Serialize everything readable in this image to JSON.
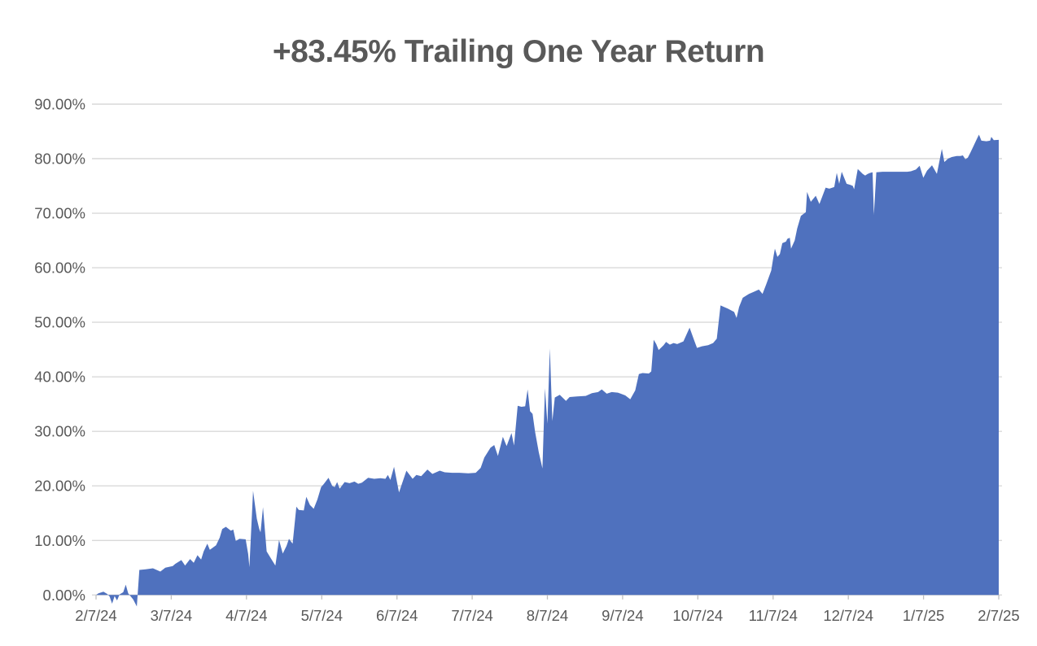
{
  "title": "+83.45% Trailing One Year Return",
  "colors": {
    "area_fill": "#4F71BE",
    "gridline": "#D9D9D9",
    "axis_line": "#D9D9D9",
    "tick_mark": "#BFBFBF",
    "axis_text": "#595959",
    "title_text": "#595959",
    "background": "#FFFFFF"
  },
  "chart_data": {
    "type": "area",
    "title": "+83.45% Trailing One Year Return",
    "xlabel": "",
    "ylabel": "",
    "grid": "horizontal",
    "legend": "none",
    "ylim": [
      0,
      90
    ],
    "y_step": 10,
    "x_domain": [
      0,
      365
    ],
    "final_value_pct": 83.45,
    "y_tick_labels": [
      "0.00%",
      "10.00%",
      "20.00%",
      "30.00%",
      "40.00%",
      "50.00%",
      "60.00%",
      "70.00%",
      "80.00%",
      "90.00%"
    ],
    "x_tick_labels": [
      "2/7/24",
      "3/7/24",
      "4/7/24",
      "5/7/24",
      "6/7/24",
      "7/7/24",
      "8/7/24",
      "9/7/24",
      "10/7/24",
      "11/7/24",
      "12/7/24",
      "1/7/25",
      "2/7/25"
    ],
    "series": [
      {
        "name": "Trailing One Year Return (%)",
        "points": [
          [
            0,
            0
          ],
          [
            1,
            0.3
          ],
          [
            3,
            0.6
          ],
          [
            4.5,
            0.2
          ],
          [
            5.5,
            -0.3
          ],
          [
            6.5,
            -1.6
          ],
          [
            7.5,
            -0.2
          ],
          [
            8.5,
            -1.0
          ],
          [
            9.5,
            0.1
          ],
          [
            11,
            0.5
          ],
          [
            12,
            1.9
          ],
          [
            13,
            0.3
          ],
          [
            15,
            -0.8
          ],
          [
            16.5,
            -2.1
          ],
          [
            17.5,
            4.6
          ],
          [
            20,
            4.7
          ],
          [
            23,
            4.9
          ],
          [
            26,
            4.3
          ],
          [
            28,
            5.0
          ],
          [
            31,
            5.3
          ],
          [
            32,
            5.7
          ],
          [
            34.5,
            6.4
          ],
          [
            36,
            5.4
          ],
          [
            38,
            6.6
          ],
          [
            39.5,
            5.9
          ],
          [
            41,
            7.3
          ],
          [
            42.5,
            6.5
          ],
          [
            43.5,
            8.0
          ],
          [
            45,
            9.4
          ],
          [
            46,
            8.3
          ],
          [
            48.5,
            9.1
          ],
          [
            50,
            10.5
          ],
          [
            51,
            12.1
          ],
          [
            52.5,
            12.5
          ],
          [
            54.5,
            11.8
          ],
          [
            55.5,
            12.0
          ],
          [
            56.5,
            9.9
          ],
          [
            58,
            10.3
          ],
          [
            60.5,
            10.2
          ],
          [
            61.5,
            7.5
          ],
          [
            62,
            5.1
          ],
          [
            63.5,
            19.1
          ],
          [
            65,
            14.0
          ],
          [
            66,
            12.1
          ],
          [
            66.5,
            11.5
          ],
          [
            67.5,
            16.1
          ],
          [
            69,
            8.0
          ],
          [
            71,
            6.5
          ],
          [
            72.5,
            5.4
          ],
          [
            74,
            10.1
          ],
          [
            75.5,
            7.6
          ],
          [
            77,
            9.0
          ],
          [
            78,
            10.3
          ],
          [
            79.5,
            9.4
          ],
          [
            81,
            16.2
          ],
          [
            82,
            15.6
          ],
          [
            84,
            15.5
          ],
          [
            85,
            18.0
          ],
          [
            86.5,
            16.5
          ],
          [
            88,
            15.8
          ],
          [
            89.5,
            17.5
          ],
          [
            91,
            19.8
          ],
          [
            92,
            20.3
          ],
          [
            94,
            21.5
          ],
          [
            95.5,
            20.0
          ],
          [
            96.5,
            19.8
          ],
          [
            97.5,
            20.7
          ],
          [
            98.5,
            19.5
          ],
          [
            100.5,
            20.7
          ],
          [
            102.5,
            20.5
          ],
          [
            104.5,
            20.8
          ],
          [
            106,
            20.4
          ],
          [
            107.5,
            20.6
          ],
          [
            110,
            21.5
          ],
          [
            112.5,
            21.3
          ],
          [
            115,
            21.4
          ],
          [
            117,
            21.3
          ],
          [
            118,
            22.0
          ],
          [
            119,
            21.1
          ],
          [
            120.5,
            23.5
          ],
          [
            122.5,
            18.8
          ],
          [
            125.5,
            22.8
          ],
          [
            128,
            21.3
          ],
          [
            129.5,
            22.0
          ],
          [
            131.5,
            21.8
          ],
          [
            134,
            23.0
          ],
          [
            136,
            22.2
          ],
          [
            139,
            22.8
          ],
          [
            141,
            22.5
          ],
          [
            144,
            22.4
          ],
          [
            147,
            22.4
          ],
          [
            150.5,
            22.3
          ],
          [
            153.5,
            22.4
          ],
          [
            155.5,
            23.3
          ],
          [
            157,
            25.2
          ],
          [
            159.5,
            27.0
          ],
          [
            161,
            27.5
          ],
          [
            162.5,
            25.5
          ],
          [
            164.5,
            29.0
          ],
          [
            166,
            27.3
          ],
          [
            168,
            29.7
          ],
          [
            169,
            27.4
          ],
          [
            170.5,
            34.7
          ],
          [
            172,
            34.5
          ],
          [
            173.5,
            34.6
          ],
          [
            174.5,
            37.7
          ],
          [
            175.5,
            33.7
          ],
          [
            176.5,
            33.2
          ],
          [
            177.5,
            30.0
          ],
          [
            179,
            26.2
          ],
          [
            180.5,
            23.2
          ],
          [
            181.5,
            37.9
          ],
          [
            182.5,
            31.4
          ],
          [
            183.5,
            45.2
          ],
          [
            184.5,
            31.9
          ],
          [
            185.5,
            36.2
          ],
          [
            187.5,
            36.7
          ],
          [
            190,
            35.6
          ],
          [
            191.5,
            36.3
          ],
          [
            194.5,
            36.4
          ],
          [
            198,
            36.5
          ],
          [
            200.5,
            37.0
          ],
          [
            203,
            37.2
          ],
          [
            204.5,
            37.7
          ],
          [
            206.5,
            36.9
          ],
          [
            208.5,
            37.2
          ],
          [
            211,
            37.1
          ],
          [
            214,
            36.6
          ],
          [
            216,
            35.9
          ],
          [
            218,
            37.5
          ],
          [
            219.5,
            40.5
          ],
          [
            221,
            40.7
          ],
          [
            223.5,
            40.6
          ],
          [
            224.5,
            41.0
          ],
          [
            225.5,
            46.8
          ],
          [
            226.5,
            46.0
          ],
          [
            227.5,
            44.9
          ],
          [
            229.5,
            45.8
          ],
          [
            230.5,
            46.4
          ],
          [
            232,
            45.9
          ],
          [
            233.5,
            46.2
          ],
          [
            235,
            46.0
          ],
          [
            237.5,
            46.5
          ],
          [
            240,
            49.0
          ],
          [
            242,
            46.5
          ],
          [
            243,
            45.3
          ],
          [
            245,
            45.6
          ],
          [
            247.5,
            45.8
          ],
          [
            249.5,
            46.2
          ],
          [
            251,
            47.0
          ],
          [
            252.5,
            53.1
          ],
          [
            254,
            52.8
          ],
          [
            255.5,
            52.5
          ],
          [
            258,
            51.9
          ],
          [
            259,
            50.8
          ],
          [
            260,
            52.8
          ],
          [
            261.5,
            54.5
          ],
          [
            264,
            55.2
          ],
          [
            266,
            55.6
          ],
          [
            268,
            56.0
          ],
          [
            269.5,
            55.2
          ],
          [
            271,
            57.0
          ],
          [
            273,
            59.5
          ],
          [
            274,
            62.3
          ],
          [
            274.5,
            63.5
          ],
          [
            275.5,
            62.0
          ],
          [
            276.5,
            62.5
          ],
          [
            277.5,
            64.5
          ],
          [
            279,
            64.8
          ],
          [
            279.5,
            65.3
          ],
          [
            280.5,
            65.5
          ],
          [
            281,
            63.5
          ],
          [
            282.5,
            65.0
          ],
          [
            283.5,
            67.2
          ],
          [
            285,
            69.5
          ],
          [
            287,
            70.2
          ],
          [
            287.5,
            73.9
          ],
          [
            289,
            72.1
          ],
          [
            291,
            73.2
          ],
          [
            292.5,
            71.7
          ],
          [
            294,
            73.5
          ],
          [
            295,
            74.7
          ],
          [
            296.5,
            74.5
          ],
          [
            298.5,
            74.8
          ],
          [
            299.5,
            77.4
          ],
          [
            300.5,
            75.4
          ],
          [
            301.5,
            77.6
          ],
          [
            303.5,
            75.4
          ],
          [
            305,
            75.2
          ],
          [
            306,
            75.0
          ],
          [
            306.5,
            74.4
          ],
          [
            308,
            78.1
          ],
          [
            310,
            77.2
          ],
          [
            311,
            76.9
          ],
          [
            312,
            77.2
          ],
          [
            313,
            77.4
          ],
          [
            314,
            77.5
          ],
          [
            314.5,
            69.7
          ],
          [
            315.5,
            77.5
          ],
          [
            318,
            77.6
          ],
          [
            321.5,
            77.6
          ],
          [
            325,
            77.6
          ],
          [
            328,
            77.6
          ],
          [
            329.5,
            77.7
          ],
          [
            331.5,
            78.0
          ],
          [
            333,
            78.7
          ],
          [
            334.5,
            76.5
          ],
          [
            336,
            77.8
          ],
          [
            338,
            78.8
          ],
          [
            339,
            78.0
          ],
          [
            340,
            77.2
          ],
          [
            342,
            81.8
          ],
          [
            343,
            79.4
          ],
          [
            344.5,
            80.0
          ],
          [
            346,
            80.3
          ],
          [
            348,
            80.5
          ],
          [
            349.5,
            80.5
          ],
          [
            350.5,
            80.6
          ],
          [
            351.5,
            79.9
          ],
          [
            352.5,
            80.2
          ],
          [
            353.5,
            81.1
          ],
          [
            355,
            82.5
          ],
          [
            356,
            83.5
          ],
          [
            357,
            84.4
          ],
          [
            358,
            83.3
          ],
          [
            360,
            83.2
          ],
          [
            361.5,
            83.3
          ],
          [
            362,
            84.0
          ],
          [
            363,
            83.4
          ],
          [
            365,
            83.45
          ]
        ]
      }
    ]
  }
}
